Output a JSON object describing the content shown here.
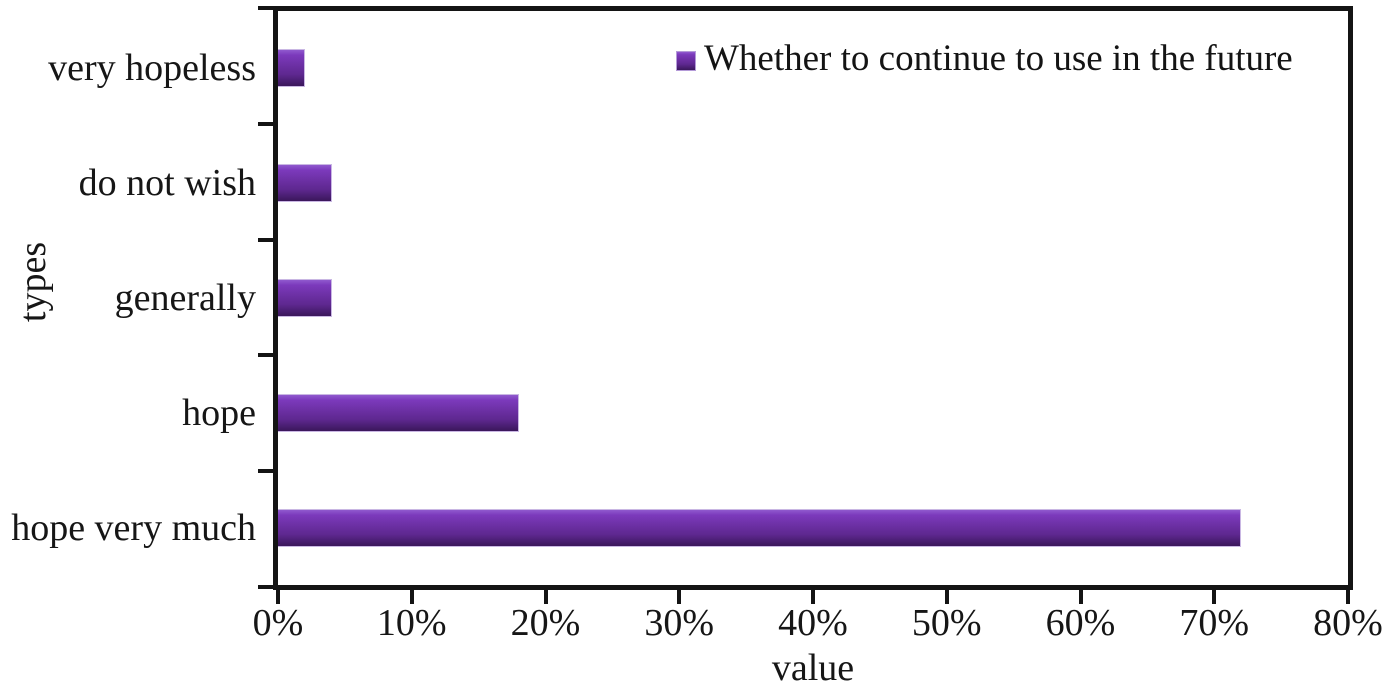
{
  "chart_data": {
    "type": "bar",
    "orientation": "horizontal",
    "title": "",
    "xlabel": "value",
    "ylabel": "types",
    "categories": [
      "very hopeless",
      "do not wish",
      "generally",
      "hope",
      "hope very much"
    ],
    "values": [
      2,
      4,
      4,
      18,
      72
    ],
    "value_unit": "%",
    "series": [
      {
        "name": "Whether to continue to use in the future",
        "values": [
          2,
          4,
          4,
          18,
          72
        ]
      }
    ],
    "xlim": [
      0,
      80
    ],
    "x_tick_labels": [
      "0%",
      "10%",
      "20%",
      "30%",
      "40%",
      "50%",
      "60%",
      "70%",
      "80%"
    ],
    "grid": false,
    "legend_position": "top-right-inside",
    "legend_label": "Whether to continue to use in the future",
    "colors": {
      "bar_gradient_top": "#9059ce",
      "bar_gradient_upper": "#7c3abc",
      "bar_gradient_mid": "#6b2fa2",
      "bar_gradient_lower": "#5e2890",
      "bar_gradient_bottom": "#3a175b",
      "bar_border": "#c9b7e3",
      "axis": "#141414",
      "text": "#161616",
      "background": "#ffffff"
    }
  }
}
